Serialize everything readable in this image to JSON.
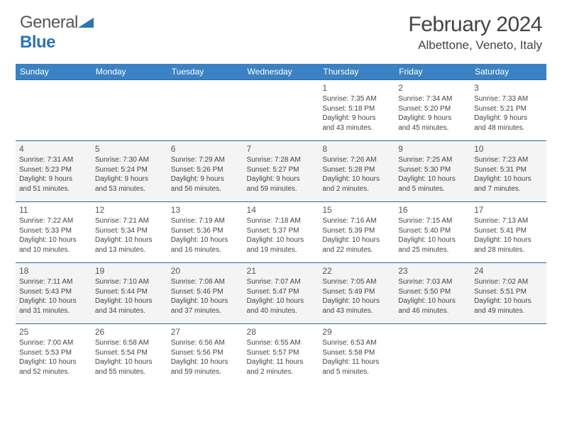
{
  "logo": {
    "text1": "General",
    "text2": "Blue"
  },
  "title": "February 2024",
  "location": "Albettone, Veneto, Italy",
  "colors": {
    "header_bg": "#3b82c4",
    "border": "#2c6aa6",
    "alt_row": "#f4f4f4",
    "text": "#444444",
    "logo_gray": "#555555",
    "logo_blue": "#2c74b3"
  },
  "weekdays": [
    "Sunday",
    "Monday",
    "Tuesday",
    "Wednesday",
    "Thursday",
    "Friday",
    "Saturday"
  ],
  "weeks": [
    [
      null,
      null,
      null,
      null,
      {
        "d": "1",
        "sr": "Sunrise: 7:35 AM",
        "ss": "Sunset: 5:18 PM",
        "dl1": "Daylight: 9 hours",
        "dl2": "and 43 minutes."
      },
      {
        "d": "2",
        "sr": "Sunrise: 7:34 AM",
        "ss": "Sunset: 5:20 PM",
        "dl1": "Daylight: 9 hours",
        "dl2": "and 45 minutes."
      },
      {
        "d": "3",
        "sr": "Sunrise: 7:33 AM",
        "ss": "Sunset: 5:21 PM",
        "dl1": "Daylight: 9 hours",
        "dl2": "and 48 minutes."
      }
    ],
    [
      {
        "d": "4",
        "sr": "Sunrise: 7:31 AM",
        "ss": "Sunset: 5:23 PM",
        "dl1": "Daylight: 9 hours",
        "dl2": "and 51 minutes."
      },
      {
        "d": "5",
        "sr": "Sunrise: 7:30 AM",
        "ss": "Sunset: 5:24 PM",
        "dl1": "Daylight: 9 hours",
        "dl2": "and 53 minutes."
      },
      {
        "d": "6",
        "sr": "Sunrise: 7:29 AM",
        "ss": "Sunset: 5:26 PM",
        "dl1": "Daylight: 9 hours",
        "dl2": "and 56 minutes."
      },
      {
        "d": "7",
        "sr": "Sunrise: 7:28 AM",
        "ss": "Sunset: 5:27 PM",
        "dl1": "Daylight: 9 hours",
        "dl2": "and 59 minutes."
      },
      {
        "d": "8",
        "sr": "Sunrise: 7:26 AM",
        "ss": "Sunset: 5:28 PM",
        "dl1": "Daylight: 10 hours",
        "dl2": "and 2 minutes."
      },
      {
        "d": "9",
        "sr": "Sunrise: 7:25 AM",
        "ss": "Sunset: 5:30 PM",
        "dl1": "Daylight: 10 hours",
        "dl2": "and 5 minutes."
      },
      {
        "d": "10",
        "sr": "Sunrise: 7:23 AM",
        "ss": "Sunset: 5:31 PM",
        "dl1": "Daylight: 10 hours",
        "dl2": "and 7 minutes."
      }
    ],
    [
      {
        "d": "11",
        "sr": "Sunrise: 7:22 AM",
        "ss": "Sunset: 5:33 PM",
        "dl1": "Daylight: 10 hours",
        "dl2": "and 10 minutes."
      },
      {
        "d": "12",
        "sr": "Sunrise: 7:21 AM",
        "ss": "Sunset: 5:34 PM",
        "dl1": "Daylight: 10 hours",
        "dl2": "and 13 minutes."
      },
      {
        "d": "13",
        "sr": "Sunrise: 7:19 AM",
        "ss": "Sunset: 5:36 PM",
        "dl1": "Daylight: 10 hours",
        "dl2": "and 16 minutes."
      },
      {
        "d": "14",
        "sr": "Sunrise: 7:18 AM",
        "ss": "Sunset: 5:37 PM",
        "dl1": "Daylight: 10 hours",
        "dl2": "and 19 minutes."
      },
      {
        "d": "15",
        "sr": "Sunrise: 7:16 AM",
        "ss": "Sunset: 5:39 PM",
        "dl1": "Daylight: 10 hours",
        "dl2": "and 22 minutes."
      },
      {
        "d": "16",
        "sr": "Sunrise: 7:15 AM",
        "ss": "Sunset: 5:40 PM",
        "dl1": "Daylight: 10 hours",
        "dl2": "and 25 minutes."
      },
      {
        "d": "17",
        "sr": "Sunrise: 7:13 AM",
        "ss": "Sunset: 5:41 PM",
        "dl1": "Daylight: 10 hours",
        "dl2": "and 28 minutes."
      }
    ],
    [
      {
        "d": "18",
        "sr": "Sunrise: 7:11 AM",
        "ss": "Sunset: 5:43 PM",
        "dl1": "Daylight: 10 hours",
        "dl2": "and 31 minutes."
      },
      {
        "d": "19",
        "sr": "Sunrise: 7:10 AM",
        "ss": "Sunset: 5:44 PM",
        "dl1": "Daylight: 10 hours",
        "dl2": "and 34 minutes."
      },
      {
        "d": "20",
        "sr": "Sunrise: 7:08 AM",
        "ss": "Sunset: 5:46 PM",
        "dl1": "Daylight: 10 hours",
        "dl2": "and 37 minutes."
      },
      {
        "d": "21",
        "sr": "Sunrise: 7:07 AM",
        "ss": "Sunset: 5:47 PM",
        "dl1": "Daylight: 10 hours",
        "dl2": "and 40 minutes."
      },
      {
        "d": "22",
        "sr": "Sunrise: 7:05 AM",
        "ss": "Sunset: 5:49 PM",
        "dl1": "Daylight: 10 hours",
        "dl2": "and 43 minutes."
      },
      {
        "d": "23",
        "sr": "Sunrise: 7:03 AM",
        "ss": "Sunset: 5:50 PM",
        "dl1": "Daylight: 10 hours",
        "dl2": "and 46 minutes."
      },
      {
        "d": "24",
        "sr": "Sunrise: 7:02 AM",
        "ss": "Sunset: 5:51 PM",
        "dl1": "Daylight: 10 hours",
        "dl2": "and 49 minutes."
      }
    ],
    [
      {
        "d": "25",
        "sr": "Sunrise: 7:00 AM",
        "ss": "Sunset: 5:53 PM",
        "dl1": "Daylight: 10 hours",
        "dl2": "and 52 minutes."
      },
      {
        "d": "26",
        "sr": "Sunrise: 6:58 AM",
        "ss": "Sunset: 5:54 PM",
        "dl1": "Daylight: 10 hours",
        "dl2": "and 55 minutes."
      },
      {
        "d": "27",
        "sr": "Sunrise: 6:56 AM",
        "ss": "Sunset: 5:56 PM",
        "dl1": "Daylight: 10 hours",
        "dl2": "and 59 minutes."
      },
      {
        "d": "28",
        "sr": "Sunrise: 6:55 AM",
        "ss": "Sunset: 5:57 PM",
        "dl1": "Daylight: 11 hours",
        "dl2": "and 2 minutes."
      },
      {
        "d": "29",
        "sr": "Sunrise: 6:53 AM",
        "ss": "Sunset: 5:58 PM",
        "dl1": "Daylight: 11 hours",
        "dl2": "and 5 minutes."
      },
      null,
      null
    ]
  ]
}
